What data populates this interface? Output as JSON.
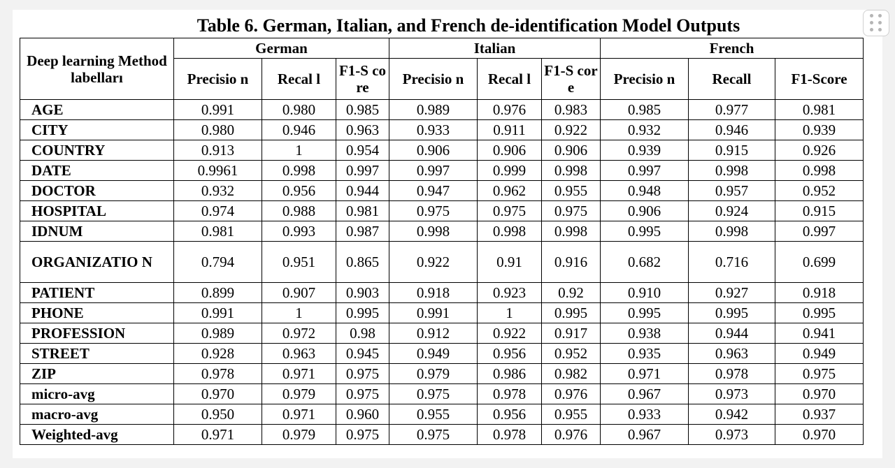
{
  "title": "Table 6. German, Italian, and French de-identification Model Outputs",
  "header": {
    "method_label": "Deep learning Method labelları",
    "languages": [
      "German",
      "Italian",
      "French"
    ],
    "metrics": {
      "german": [
        "Precisio n",
        "Recal l",
        "F1-S core"
      ],
      "italian": [
        "Precisio n",
        "Recal l",
        "F1-S core"
      ],
      "french": [
        "Precisio n",
        "Recall",
        "F1-Score"
      ]
    }
  },
  "rows": [
    {
      "label": "AGE",
      "values": [
        "0.991",
        "0.980",
        "0.985",
        "0.989",
        "0.976",
        "0.983",
        "0.985",
        "0.977",
        "0.981"
      ]
    },
    {
      "label": "CITY",
      "values": [
        "0.980",
        "0.946",
        "0.963",
        "0.933",
        "0.911",
        "0.922",
        "0.932",
        "0.946",
        "0.939"
      ]
    },
    {
      "label": "COUNTRY",
      "values": [
        "0.913",
        "1",
        "0.954",
        "0.906",
        "0.906",
        "0.906",
        "0.939",
        "0.915",
        "0.926"
      ]
    },
    {
      "label": "DATE",
      "values": [
        "0.9961",
        "0.998",
        "0.997",
        "0.997",
        "0.999",
        "0.998",
        "0.997",
        "0.998",
        "0.998"
      ]
    },
    {
      "label": "DOCTOR",
      "values": [
        "0.932",
        "0.956",
        "0.944",
        "0.947",
        "0.962",
        "0.955",
        "0.948",
        "0.957",
        "0.952"
      ]
    },
    {
      "label": "HOSPITAL",
      "values": [
        "0.974",
        "0.988",
        "0.981",
        "0.975",
        "0.975",
        "0.975",
        "0.906",
        "0.924",
        "0.915"
      ]
    },
    {
      "label": "IDNUM",
      "values": [
        "0.981",
        "0.993",
        "0.987",
        "0.998",
        "0.998",
        "0.998",
        "0.995",
        "0.998",
        "0.997"
      ]
    },
    {
      "label": "ORGANIZATIO N",
      "values": [
        "0.794",
        "0.951",
        "0.865",
        "0.922",
        "0.91",
        "0.916",
        "0.682",
        "0.716",
        "0.699"
      ]
    },
    {
      "label": "PATIENT",
      "values": [
        "0.899",
        "0.907",
        "0.903",
        "0.918",
        "0.923",
        "0.92",
        "0.910",
        "0.927",
        "0.918"
      ]
    },
    {
      "label": "PHONE",
      "values": [
        "0.991",
        "1",
        "0.995",
        "0.991",
        "1",
        "0.995",
        "0.995",
        "0.995",
        "0.995"
      ]
    },
    {
      "label": "PROFESSION",
      "values": [
        "0.989",
        "0.972",
        "0.98",
        "0.912",
        "0.922",
        "0.917",
        "0.938",
        "0.944",
        "0.941"
      ]
    },
    {
      "label": "STREET",
      "values": [
        "0.928",
        "0.963",
        "0.945",
        "0.949",
        "0.956",
        "0.952",
        "0.935",
        "0.963",
        "0.949"
      ]
    },
    {
      "label": "ZIP",
      "values": [
        "0.978",
        "0.971",
        "0.975",
        "0.979",
        "0.986",
        "0.982",
        "0.971",
        "0.978",
        "0.975"
      ]
    },
    {
      "label": "micro-avg",
      "values": [
        "0.970",
        "0.979",
        "0.975",
        "0.975",
        "0.978",
        "0.976",
        "0.967",
        "0.973",
        "0.970"
      ]
    },
    {
      "label": "macro-avg",
      "values": [
        "0.950",
        "0.971",
        "0.960",
        "0.955",
        "0.956",
        "0.955",
        "0.933",
        "0.942",
        "0.937"
      ]
    },
    {
      "label": "Weighted-avg",
      "values": [
        "0.971",
        "0.979",
        "0.975",
        "0.975",
        "0.978",
        "0.976",
        "0.967",
        "0.973",
        "0.970"
      ]
    }
  ],
  "grip_icon": "drag-handle-icon"
}
